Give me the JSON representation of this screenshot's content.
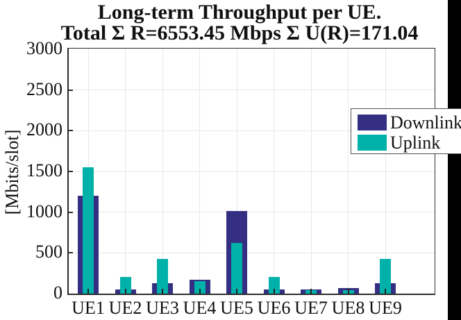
{
  "title": {
    "line1": "Long-term Throughput per UE.",
    "line2": "Total Σ R=6553.45 Mbps Σ U(R)=171.04"
  },
  "legend": {
    "items": [
      {
        "label": "Downlink",
        "color": "#342f83"
      },
      {
        "label": "Uplink",
        "color": "#00b1a9"
      }
    ],
    "position": "top-right"
  },
  "chart_data": {
    "type": "bar",
    "style": "overlaid-bars (wide Downlink behind, narrow Uplink in front)",
    "title": "Long-term Throughput per UE. Total Σ R=6553.45 Mbps Σ U(R)=171.04",
    "xlabel": "",
    "ylabel": "[Mbits/slot]",
    "categories": [
      "UE1",
      "UE2",
      "UE3",
      "UE4",
      "UE5",
      "UE6",
      "UE7",
      "UE8",
      "UE9"
    ],
    "series": [
      {
        "name": "Downlink",
        "color": "#342f83",
        "values": [
          1205,
          55,
          130,
          170,
          1015,
          55,
          55,
          65,
          130
        ]
      },
      {
        "name": "Uplink",
        "color": "#00b1a9",
        "values": [
          1550,
          205,
          430,
          155,
          625,
          205,
          40,
          40,
          430
        ]
      }
    ],
    "ylim": [
      0,
      3000
    ],
    "yticks": [
      0,
      500,
      1000,
      1500,
      2000,
      2500,
      3000
    ],
    "grid": true,
    "legend_position": "top-right"
  },
  "colors": {
    "downlink": "#342f83",
    "uplink": "#00b1a9",
    "grid": "#e7e7e7",
    "axis": "#2b2b2b",
    "band_right": "#000000",
    "background": "#ffffff"
  }
}
